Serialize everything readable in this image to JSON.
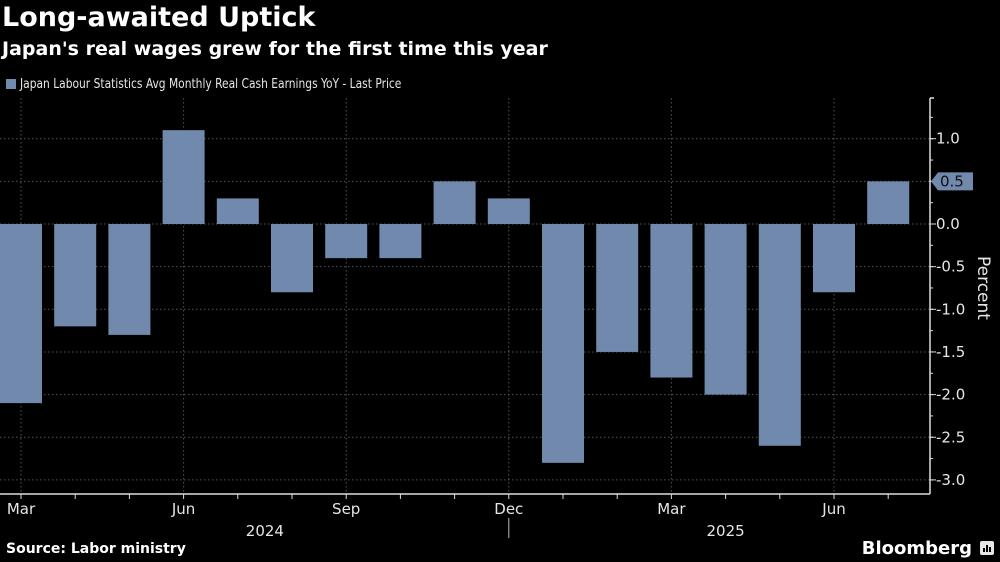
{
  "header": {
    "title": "Long-awaited Uptick",
    "subtitle": "Japan's real wages grew for the first time this year"
  },
  "footer": {
    "source": "Source: Labor ministry",
    "brand": "Bloomberg",
    "brand_icon": "bloomberg-chart-icon"
  },
  "chart_data": {
    "type": "bar",
    "title": "Long-awaited Uptick",
    "subtitle": "Japan's real wages grew for the first time this year",
    "legend": [
      "Japan Labour Statistics Avg Monthly Real Cash Earnings YoY - Last Price"
    ],
    "legend_position": "top-left",
    "categories": [
      "Mar 2024",
      "Apr 2024",
      "May 2024",
      "Jun 2024",
      "Jul 2024",
      "Aug 2024",
      "Sep 2024",
      "Oct 2024",
      "Nov 2024",
      "Dec 2024",
      "Jan 2025",
      "Feb 2025",
      "Mar 2025",
      "Apr 2025",
      "May 2025",
      "Jun 2025",
      "Jul 2025"
    ],
    "series": [
      {
        "name": "Japan Labour Statistics Avg Monthly Real Cash Earnings YoY - Last Price",
        "color": "#7189ad",
        "values": [
          -2.1,
          -1.2,
          -1.3,
          1.1,
          0.3,
          -0.8,
          -0.4,
          -0.4,
          0.5,
          0.3,
          -2.8,
          -1.5,
          -1.8,
          -2.0,
          -2.6,
          -0.8,
          0.5
        ]
      }
    ],
    "x_tick_labels": [
      {
        "label": "Mar",
        "index": 0
      },
      {
        "label": "Jun",
        "index": 3
      },
      {
        "label": "Sep",
        "index": 6
      },
      {
        "label": "Dec",
        "index": 9
      },
      {
        "label": "Mar",
        "index": 12
      },
      {
        "label": "Jun",
        "index": 15
      }
    ],
    "x_year_labels": [
      {
        "label": "2024",
        "center_index": 4.5
      },
      {
        "label": "2025",
        "center_index": 13
      }
    ],
    "year_divider_index": 9,
    "ylabel": "Percent",
    "xlabel": "",
    "ylim": [
      -3.15,
      1.5
    ],
    "y_ticks": [
      1.0,
      0.5,
      0.0,
      -0.5,
      -1.0,
      -1.5,
      -2.0,
      -2.5,
      -3.0
    ],
    "y_tick_labels": [
      "1.0",
      "0.5",
      "0.0",
      "-0.5",
      "-1.0",
      "-1.5",
      "-2.0",
      "-2.5",
      "-3.0"
    ],
    "last_price_label": "0.5",
    "grid": true,
    "y_axis_side": "right"
  }
}
